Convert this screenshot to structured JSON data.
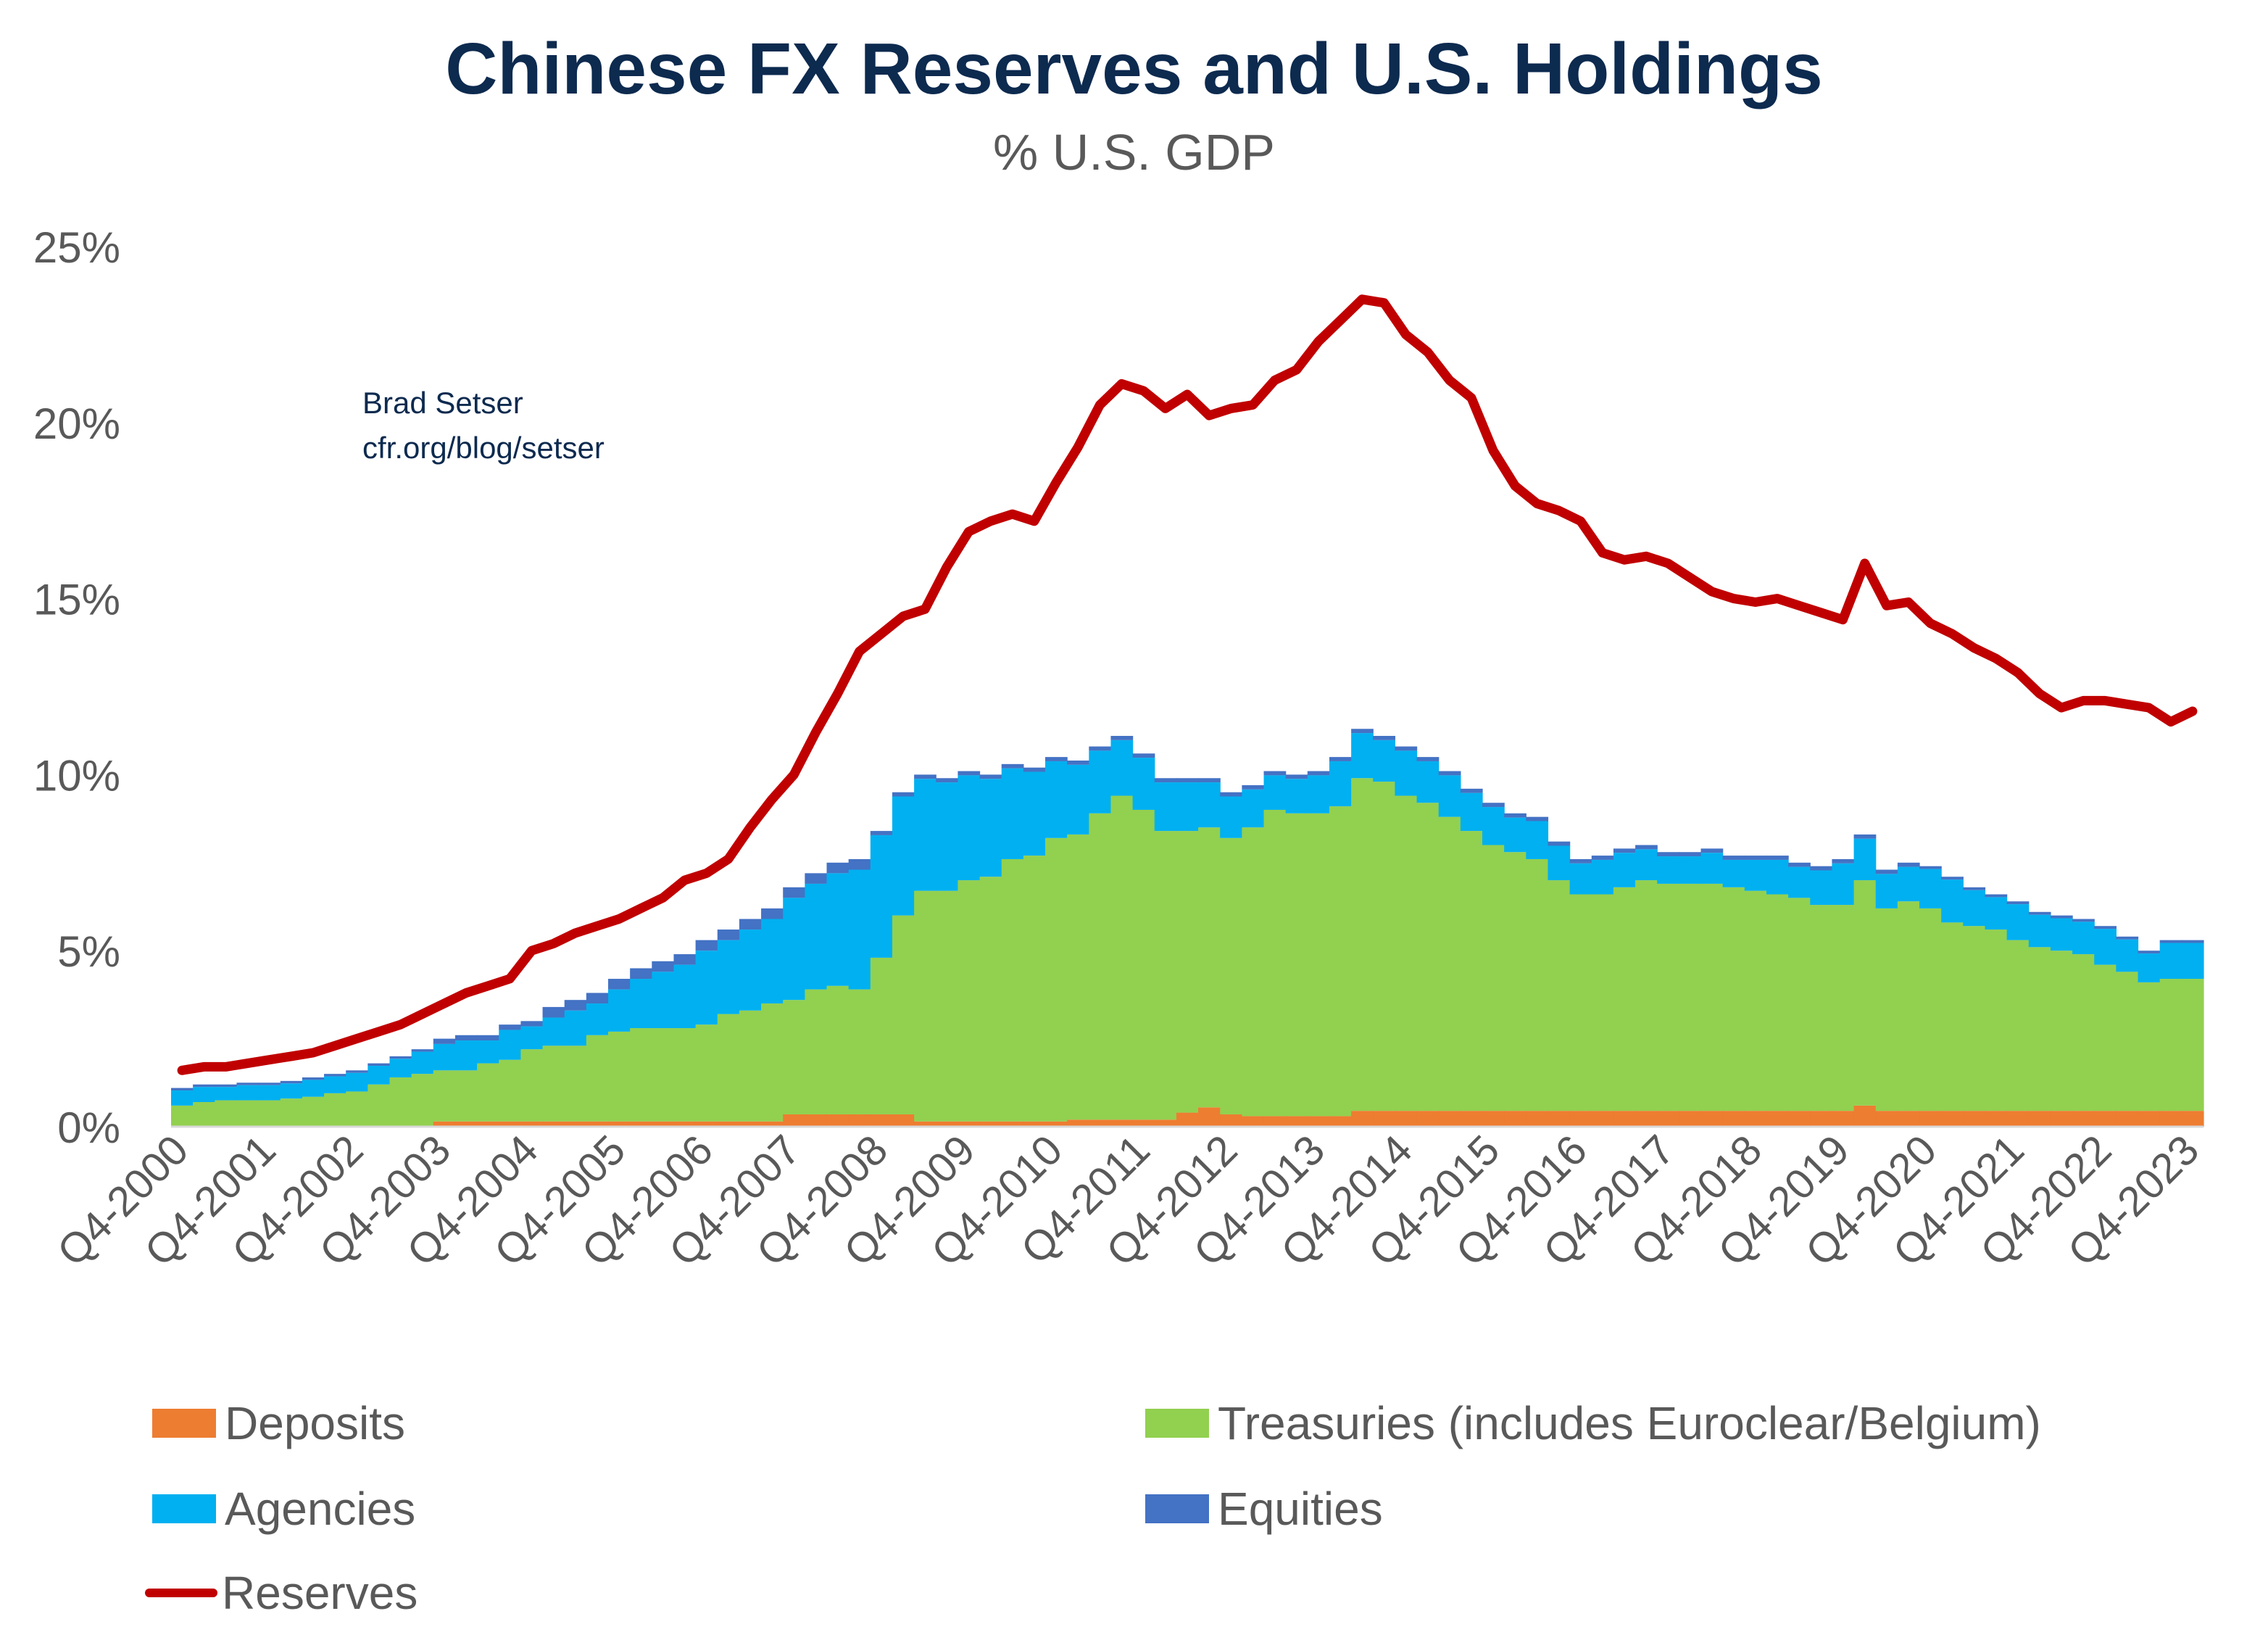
{
  "title": "Chinese FX Reserves and U.S. Holdings",
  "subtitle": "% U.S. GDP",
  "credit": {
    "author": "Brad Setser",
    "url": "cfr.org/blog/setser"
  },
  "chart_data": {
    "type": "bar",
    "stacked": true,
    "title": "Chinese FX Reserves and U.S. Holdings",
    "subtitle": "% U.S. GDP",
    "frequency": "quarterly",
    "x_tick_labels": [
      "Q4-2000",
      "Q4-2001",
      "Q4-2002",
      "Q4-2003",
      "Q4-2004",
      "Q4-2005",
      "Q4-2006",
      "Q4-2007",
      "Q4-2008",
      "Q4-2009",
      "Q4-2010",
      "Q4-2011",
      "Q4-2012",
      "Q4-2013",
      "Q4-2014",
      "Q4-2015",
      "Q4-2016",
      "Q4-2017",
      "Q4-2018",
      "Q4-2019",
      "Q4-2020",
      "Q4-2021",
      "Q4-2022",
      "Q4-2023"
    ],
    "y_tick_labels": [
      "0%",
      "5%",
      "10%",
      "15%",
      "20%",
      "25%"
    ],
    "ylim": [
      0,
      25
    ],
    "y_unit": "%",
    "grid": false,
    "legend_position": "bottom",
    "series": [
      {
        "name": "Deposits",
        "kind": "bar",
        "color": "#ED7D31",
        "values": [
          0.02,
          0.02,
          0.02,
          0.02,
          0.02,
          0.02,
          0.02,
          0.02,
          0.02,
          0.02,
          0.02,
          0.02,
          0.15,
          0.15,
          0.15,
          0.15,
          0.15,
          0.15,
          0.15,
          0.15,
          0.15,
          0.15,
          0.15,
          0.15,
          0.15,
          0.15,
          0.15,
          0.15,
          0.35,
          0.35,
          0.35,
          0.35,
          0.35,
          0.35,
          0.15,
          0.15,
          0.15,
          0.15,
          0.15,
          0.15,
          0.15,
          0.2,
          0.2,
          0.2,
          0.2,
          0.2,
          0.4,
          0.55,
          0.35,
          0.3,
          0.3,
          0.3,
          0.3,
          0.3,
          0.45,
          0.45,
          0.45,
          0.45,
          0.45,
          0.45,
          0.45,
          0.45,
          0.45,
          0.45,
          0.45,
          0.45,
          0.45,
          0.45,
          0.45,
          0.45,
          0.45,
          0.45,
          0.45,
          0.45,
          0.45,
          0.45,
          0.45,
          0.6,
          0.45,
          0.45,
          0.45,
          0.45,
          0.45,
          0.45,
          0.45,
          0.45,
          0.45,
          0.45,
          0.45,
          0.45,
          0.45,
          0.45,
          0.45
        ]
      },
      {
        "name": "Treasuries (includes Euroclear/Belgium)",
        "kind": "bar",
        "color": "#92D050",
        "values": [
          0.58,
          0.68,
          0.73,
          0.73,
          0.73,
          0.78,
          0.83,
          0.93,
          0.98,
          1.18,
          1.38,
          1.48,
          1.45,
          1.45,
          1.65,
          1.75,
          2.05,
          2.15,
          2.15,
          2.45,
          2.55,
          2.65,
          2.65,
          2.65,
          2.75,
          3.05,
          3.15,
          3.35,
          3.25,
          3.55,
          3.65,
          3.55,
          4.45,
          5.65,
          6.55,
          6.55,
          6.85,
          6.95,
          7.45,
          7.55,
          8.05,
          8.1,
          8.7,
          9.2,
          8.8,
          8.2,
          8.0,
          7.95,
          7.85,
          8.2,
          8.7,
          8.6,
          8.6,
          8.8,
          9.45,
          9.35,
          8.95,
          8.75,
          8.35,
          7.95,
          7.55,
          7.35,
          7.15,
          6.55,
          6.15,
          6.15,
          6.35,
          6.55,
          6.45,
          6.45,
          6.45,
          6.35,
          6.25,
          6.15,
          6.05,
          5.85,
          5.85,
          6.4,
          5.75,
          5.95,
          5.75,
          5.35,
          5.25,
          5.15,
          4.85,
          4.65,
          4.55,
          4.45,
          4.15,
          3.95,
          3.65,
          3.75,
          3.75
        ]
      },
      {
        "name": "Agencies",
        "kind": "bar",
        "color": "#00B0F0",
        "values": [
          0.43,
          0.43,
          0.38,
          0.43,
          0.43,
          0.43,
          0.48,
          0.48,
          0.53,
          0.53,
          0.53,
          0.63,
          0.75,
          0.85,
          0.65,
          0.85,
          0.65,
          0.8,
          1.0,
          0.9,
          1.2,
          1.4,
          1.6,
          1.8,
          2.1,
          2.1,
          2.3,
          2.4,
          2.9,
          3.0,
          3.2,
          3.4,
          3.48,
          3.38,
          3.18,
          3.08,
          2.98,
          2.78,
          2.58,
          2.38,
          2.18,
          1.98,
          1.78,
          1.58,
          1.48,
          1.38,
          1.38,
          1.28,
          1.18,
          1.08,
          0.98,
          0.98,
          1.08,
          1.28,
          1.28,
          1.18,
          1.28,
          1.18,
          1.18,
          1.08,
          1.08,
          0.98,
          1.08,
          0.98,
          0.88,
          0.98,
          0.98,
          0.88,
          0.78,
          0.78,
          0.88,
          0.78,
          0.88,
          0.98,
          0.88,
          0.98,
          1.18,
          1.18,
          0.98,
          0.98,
          1.12,
          1.22,
          1.02,
          0.92,
          1.02,
          0.92,
          0.92,
          0.92,
          1.02,
          0.92,
          0.82,
          1.02,
          1.02
        ]
      },
      {
        "name": "Equities",
        "kind": "bar",
        "color": "#4472C4",
        "values": [
          0.07,
          0.07,
          0.07,
          0.07,
          0.07,
          0.07,
          0.07,
          0.07,
          0.07,
          0.07,
          0.07,
          0.07,
          0.15,
          0.15,
          0.15,
          0.15,
          0.15,
          0.3,
          0.3,
          0.3,
          0.3,
          0.3,
          0.3,
          0.3,
          0.3,
          0.3,
          0.3,
          0.3,
          0.3,
          0.3,
          0.3,
          0.3,
          0.12,
          0.12,
          0.12,
          0.12,
          0.12,
          0.12,
          0.12,
          0.12,
          0.12,
          0.12,
          0.12,
          0.12,
          0.12,
          0.12,
          0.12,
          0.12,
          0.12,
          0.12,
          0.12,
          0.12,
          0.12,
          0.12,
          0.12,
          0.12,
          0.12,
          0.12,
          0.12,
          0.12,
          0.12,
          0.12,
          0.12,
          0.12,
          0.12,
          0.12,
          0.12,
          0.12,
          0.12,
          0.12,
          0.12,
          0.12,
          0.12,
          0.12,
          0.12,
          0.12,
          0.12,
          0.12,
          0.12,
          0.12,
          0.08,
          0.08,
          0.08,
          0.08,
          0.08,
          0.08,
          0.08,
          0.08,
          0.08,
          0.08,
          0.08,
          0.08,
          0.08
        ]
      },
      {
        "name": "Reserves",
        "kind": "line",
        "color": "#C00000",
        "values": [
          1.6,
          1.7,
          1.7,
          1.8,
          1.9,
          2.0,
          2.1,
          2.3,
          2.5,
          2.7,
          2.9,
          3.2,
          3.5,
          3.8,
          4.0,
          4.2,
          5.0,
          5.2,
          5.5,
          5.7,
          5.9,
          6.2,
          6.5,
          7.0,
          7.2,
          7.6,
          8.5,
          9.3,
          10.0,
          11.2,
          12.3,
          13.5,
          14.0,
          14.5,
          14.7,
          15.9,
          16.9,
          17.2,
          17.4,
          17.2,
          18.3,
          19.3,
          20.5,
          21.1,
          20.9,
          20.4,
          20.8,
          20.2,
          20.4,
          20.5,
          21.2,
          21.5,
          22.3,
          22.9,
          23.5,
          23.4,
          22.5,
          22.0,
          21.2,
          20.7,
          19.2,
          18.2,
          17.7,
          17.5,
          17.2,
          16.3,
          16.1,
          16.2,
          16.0,
          15.6,
          15.2,
          15.0,
          14.9,
          15.0,
          14.8,
          14.6,
          14.4,
          16.0,
          14.8,
          14.9,
          14.3,
          14.0,
          13.6,
          13.3,
          12.9,
          12.3,
          11.9,
          12.1,
          12.1,
          12.0,
          11.9,
          11.5,
          11.8
        ]
      }
    ]
  }
}
